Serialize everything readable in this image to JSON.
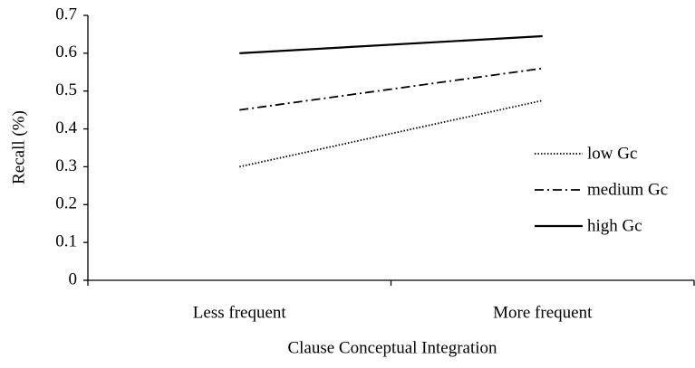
{
  "chart_data": {
    "type": "line",
    "xlabel": "Clause Conceptual Integration",
    "ylabel": "Recall (%)",
    "categories": [
      "Less frequent",
      "More frequent"
    ],
    "series": [
      {
        "name": "low Gc",
        "color": "#000000",
        "dash": "dotted",
        "values": [
          0.3,
          0.475
        ]
      },
      {
        "name": "medium Gc",
        "color": "#000000",
        "dash": "dashdot",
        "values": [
          0.45,
          0.56
        ]
      },
      {
        "name": "high Gc",
        "color": "#000000",
        "dash": "solid",
        "values": [
          0.6,
          0.645
        ]
      }
    ],
    "ylim": [
      0,
      0.7
    ],
    "yticks": [
      0,
      0.1,
      0.2,
      0.3,
      0.4,
      0.5,
      0.6,
      0.7
    ],
    "grid": false,
    "legend": "right"
  }
}
